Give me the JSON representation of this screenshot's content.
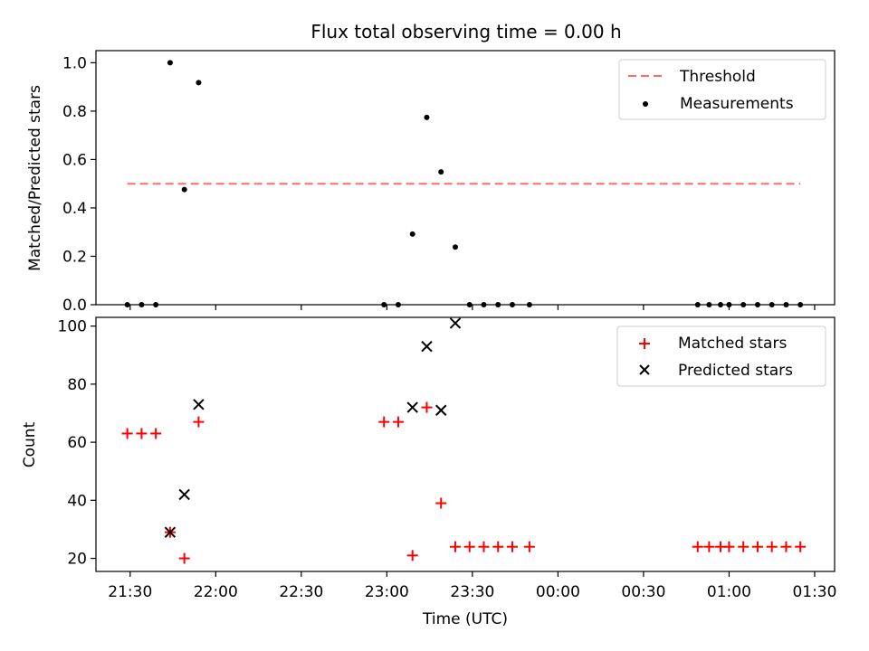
{
  "chart_data": [
    {
      "type": "scatter",
      "title": "Flux total observing time = 0.00 h",
      "xlabel": "",
      "ylabel": "Matched/Predicted stars",
      "xlim": [
        "21:18",
        "01:37"
      ],
      "ylim": [
        0,
        1.05
      ],
      "yticks": [
        "0.0",
        "0.2",
        "0.4",
        "0.6",
        "0.8",
        "1.0"
      ],
      "grid": false,
      "legend": {
        "position": "top-right",
        "entries": [
          "Threshold",
          "Measurements"
        ]
      },
      "threshold": {
        "name": "Threshold",
        "y": 0.5,
        "x_start": "21:29",
        "x_end": "01:25",
        "color": "#ff6b6b",
        "style": "dashed"
      },
      "series": [
        {
          "name": "Measurements",
          "marker": "dot",
          "color": "#000000",
          "points": [
            [
              "21:29",
              0.0
            ],
            [
              "21:34",
              0.0
            ],
            [
              "21:39",
              0.0
            ],
            [
              "21:44",
              1.0
            ],
            [
              "21:49",
              0.476
            ],
            [
              "21:54",
              0.918
            ],
            [
              "22:59",
              0.0
            ],
            [
              "23:04",
              0.0
            ],
            [
              "23:09",
              0.292
            ],
            [
              "23:14",
              0.774
            ],
            [
              "23:19",
              0.549
            ],
            [
              "23:24",
              0.238
            ],
            [
              "23:29",
              0.0
            ],
            [
              "23:34",
              0.0
            ],
            [
              "23:39",
              0.0
            ],
            [
              "23:44",
              0.0
            ],
            [
              "23:50",
              0.0
            ],
            [
              "00:49",
              0.0
            ],
            [
              "00:53",
              0.0
            ],
            [
              "00:57",
              0.0
            ],
            [
              "01:00",
              0.0
            ],
            [
              "01:05",
              0.0
            ],
            [
              "01:10",
              0.0
            ],
            [
              "01:15",
              0.0
            ],
            [
              "01:20",
              0.0
            ],
            [
              "01:25",
              0.0
            ]
          ]
        }
      ]
    },
    {
      "type": "scatter",
      "title": "",
      "xlabel": "Time (UTC)",
      "ylabel": "Count",
      "xlim": [
        "21:18",
        "01:37"
      ],
      "xticks": [
        "21:30",
        "22:00",
        "22:30",
        "23:00",
        "23:30",
        "00:00",
        "00:30",
        "01:00",
        "01:30"
      ],
      "ylim": [
        15.5,
        103
      ],
      "yticks": [
        "20",
        "40",
        "60",
        "80",
        "100"
      ],
      "grid": false,
      "legend": {
        "position": "top-right",
        "entries": [
          "Matched stars",
          "Predicted stars"
        ]
      },
      "series": [
        {
          "name": "Matched stars",
          "marker": "plus",
          "color": "#ff0000",
          "points": [
            [
              "21:29",
              63
            ],
            [
              "21:34",
              63
            ],
            [
              "21:39",
              63
            ],
            [
              "21:44",
              29
            ],
            [
              "21:49",
              20
            ],
            [
              "21:54",
              67
            ],
            [
              "22:59",
              67
            ],
            [
              "23:04",
              67
            ],
            [
              "23:09",
              21
            ],
            [
              "23:14",
              72
            ],
            [
              "23:19",
              39
            ],
            [
              "23:24",
              24
            ],
            [
              "23:29",
              24
            ],
            [
              "23:34",
              24
            ],
            [
              "23:39",
              24
            ],
            [
              "23:44",
              24
            ],
            [
              "23:50",
              24
            ],
            [
              "00:49",
              24
            ],
            [
              "00:53",
              24
            ],
            [
              "00:57",
              24
            ],
            [
              "01:00",
              24
            ],
            [
              "01:05",
              24
            ],
            [
              "01:10",
              24
            ],
            [
              "01:15",
              24
            ],
            [
              "01:20",
              24
            ],
            [
              "01:25",
              24
            ]
          ]
        },
        {
          "name": "Predicted stars",
          "marker": "x",
          "color": "#000000",
          "points": [
            [
              "21:44",
              29
            ],
            [
              "21:49",
              42
            ],
            [
              "21:54",
              73
            ],
            [
              "23:09",
              72
            ],
            [
              "23:14",
              93
            ],
            [
              "23:19",
              71
            ],
            [
              "23:24",
              101
            ]
          ]
        }
      ]
    }
  ]
}
